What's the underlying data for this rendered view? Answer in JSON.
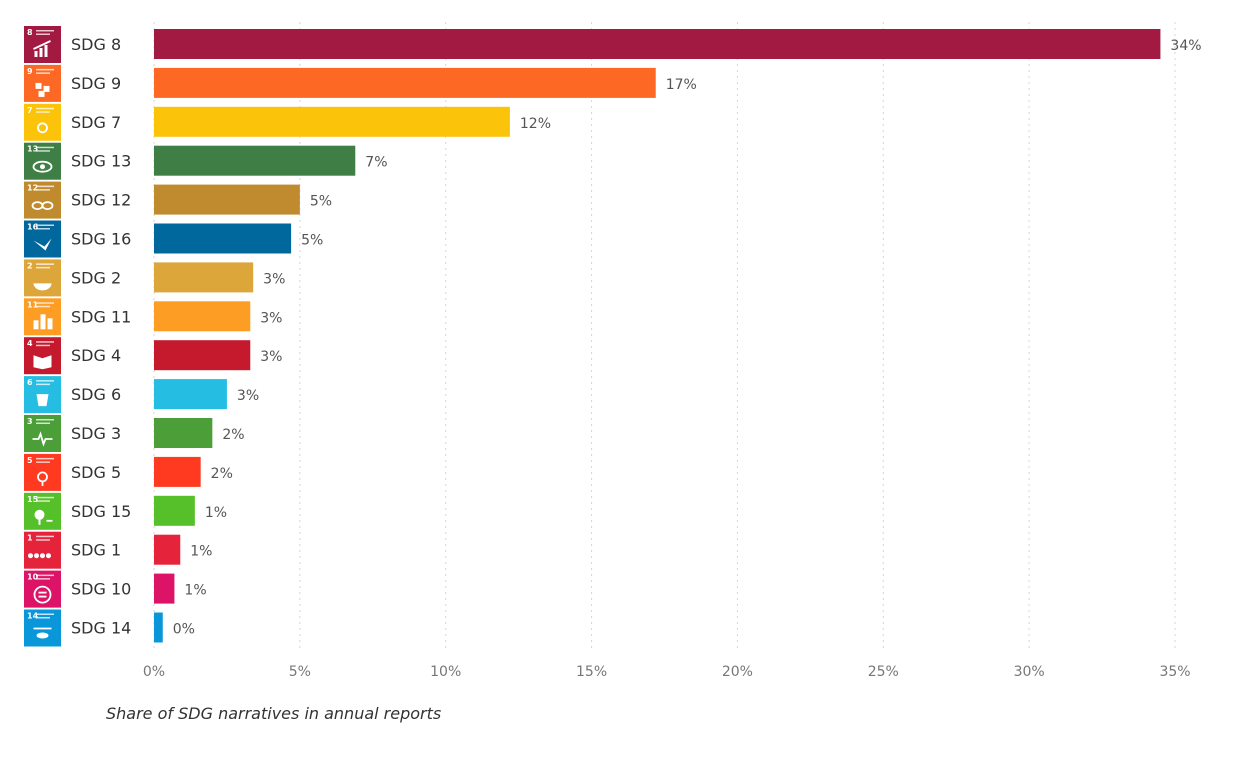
{
  "chart_data": {
    "type": "bar",
    "orientation": "horizontal",
    "categories": [
      "SDG 8",
      "SDG 9",
      "SDG 7",
      "SDG 13",
      "SDG 12",
      "SDG 16",
      "SDG 2",
      "SDG 11",
      "SDG 4",
      "SDG 6",
      "SDG 3",
      "SDG 5",
      "SDG 15",
      "SDG 1",
      "SDG 10",
      "SDG 14"
    ],
    "icon_numbers": [
      "8",
      "9",
      "7",
      "13",
      "12",
      "16",
      "2",
      "11",
      "4",
      "6",
      "3",
      "5",
      "15",
      "1",
      "10",
      "14"
    ],
    "values": [
      34.5,
      17.2,
      12.2,
      6.9,
      5.0,
      4.7,
      3.4,
      3.3,
      3.3,
      2.5,
      2.0,
      1.6,
      1.4,
      0.9,
      0.7,
      0.3
    ],
    "value_labels": [
      "34%",
      "17%",
      "12%",
      "7%",
      "5%",
      "5%",
      "3%",
      "3%",
      "3%",
      "3%",
      "2%",
      "2%",
      "1%",
      "1%",
      "1%",
      "0%"
    ],
    "colors": [
      "#A21942",
      "#FD6925",
      "#FCC30B",
      "#3F7E44",
      "#BF8B2E",
      "#00689D",
      "#DDA63A",
      "#FD9D24",
      "#C5192D",
      "#26BDE2",
      "#4C9F38",
      "#FF3A21",
      "#56C02B",
      "#E5243B",
      "#DD1367",
      "#0A97D9"
    ],
    "icon_names": [
      "growth-chart-icon",
      "industry-cubes-icon",
      "sun-icon",
      "climate-eye-icon",
      "infinity-icon",
      "dove-icon",
      "food-bowl-icon",
      "city-buildings-icon",
      "book-icon",
      "water-drop-icon",
      "heartbeat-icon",
      "gender-equality-icon",
      "tree-bird-icon",
      "people-family-icon",
      "equality-arrows-icon",
      "fish-waves-icon"
    ],
    "xlim": [
      0,
      35
    ],
    "xticks": [
      0,
      5,
      10,
      15,
      20,
      25,
      30,
      35
    ],
    "xtick_labels": [
      "0%",
      "5%",
      "10%",
      "15%",
      "20%",
      "25%",
      "30%",
      "35%"
    ],
    "grid": "vertical-dotted",
    "title": "",
    "xlabel": "",
    "ylabel": ""
  },
  "caption": "Share of SDG narratives in annual reports"
}
